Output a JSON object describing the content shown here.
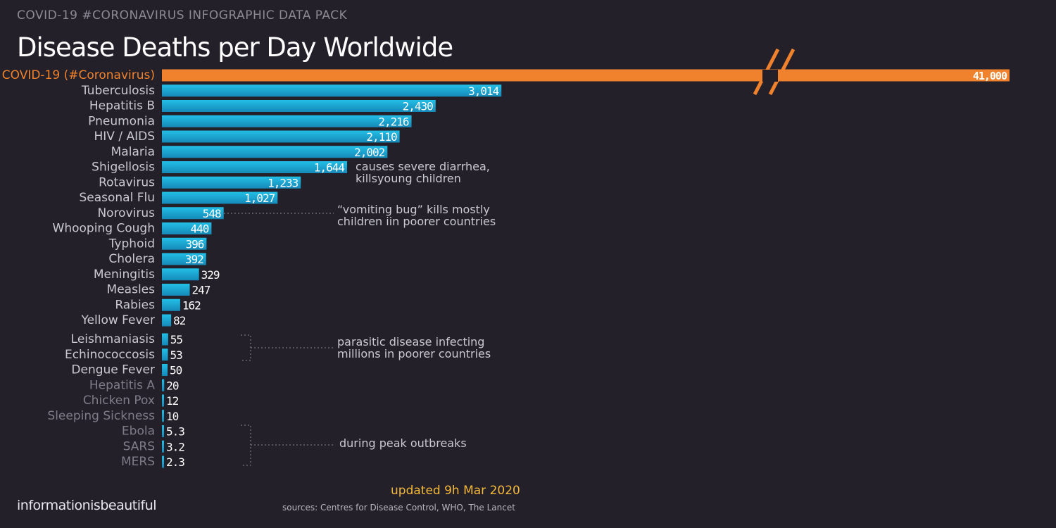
{
  "header": {
    "supertitle": "COVID-19 #CORONAVIRUS INFOGRAPHIC DATA PACK",
    "title": "Disease Deaths per Day Worldwide"
  },
  "footer": {
    "updated_prefix": "updated ",
    "updated_date": "9h Mar 2020",
    "sources": "sources: Centres for Disease Control, WHO, The Lancet",
    "brand": "informationisbeautiful"
  },
  "colors": {
    "covid": "#f0822d",
    "bar": "#1badd6",
    "bar_dark": "#1886b3",
    "label": "#c9c9cf",
    "label_dim": "#7e7c86",
    "value": "#ffffff",
    "background": "#232029"
  },
  "chart_data": {
    "type": "bar",
    "orientation": "horizontal",
    "axis_break": true,
    "categories": [
      "COVID-19 (#Coronavirus)",
      "Tuberculosis",
      "Hepatitis B",
      "Pneumonia",
      "HIV / AIDS",
      "Malaria",
      "Shigellosis",
      "Rotavirus",
      "Seasonal Flu",
      "Norovirus",
      "Whooping Cough",
      "Typhoid",
      "Cholera",
      "Meningitis",
      "Measles",
      "Rabies",
      "Yellow Fever",
      "Leishmaniasis",
      "Echinococcosis",
      "Dengue Fever",
      "Hepatitis A",
      "Chicken Pox",
      "Sleeping Sickness",
      "Ebola",
      "SARS",
      "MERS"
    ],
    "values": [
      41000,
      3014,
      2430,
      2216,
      2110,
      2002,
      1644,
      1233,
      1027,
      548,
      440,
      396,
      392,
      329,
      247,
      162,
      82,
      55,
      53,
      50,
      20,
      12,
      10,
      5.3,
      3.2,
      2.3
    ],
    "value_labels": [
      "41,000",
      "3,014",
      "2,430",
      "2,216",
      "2,110",
      "2,002",
      "1,644",
      "1,233",
      "1,027",
      "548",
      "440",
      "396",
      "392",
      "329",
      "247",
      "162",
      "82",
      "55",
      "53",
      "50",
      "20",
      "12",
      "10",
      "5.3",
      "3.2",
      "2.3"
    ],
    "highlight": [
      "COVID-19 (#Coronavirus)"
    ],
    "dimmed": [
      "Hepatitis A",
      "Chicken Pox",
      "Sleeping Sickness",
      "Ebola",
      "SARS",
      "MERS"
    ],
    "annotations": [
      {
        "target": "Shigellosis",
        "lines": [
          "causes severe diarrhea,",
          "killsyoung children"
        ]
      },
      {
        "target": "Norovirus",
        "lines": [
          "“vomiting bug” kills mostly",
          "children iin poorer countries"
        ]
      },
      {
        "targets": [
          "Leishmaniasis",
          "Echinococcosis",
          "Dengue Fever"
        ],
        "lines": [
          "parasitic disease infecting",
          "millions in poorer countries"
        ]
      },
      {
        "targets": [
          "Ebola",
          "SARS",
          "MERS"
        ],
        "lines": [
          "during peak outbreaks"
        ]
      }
    ]
  }
}
